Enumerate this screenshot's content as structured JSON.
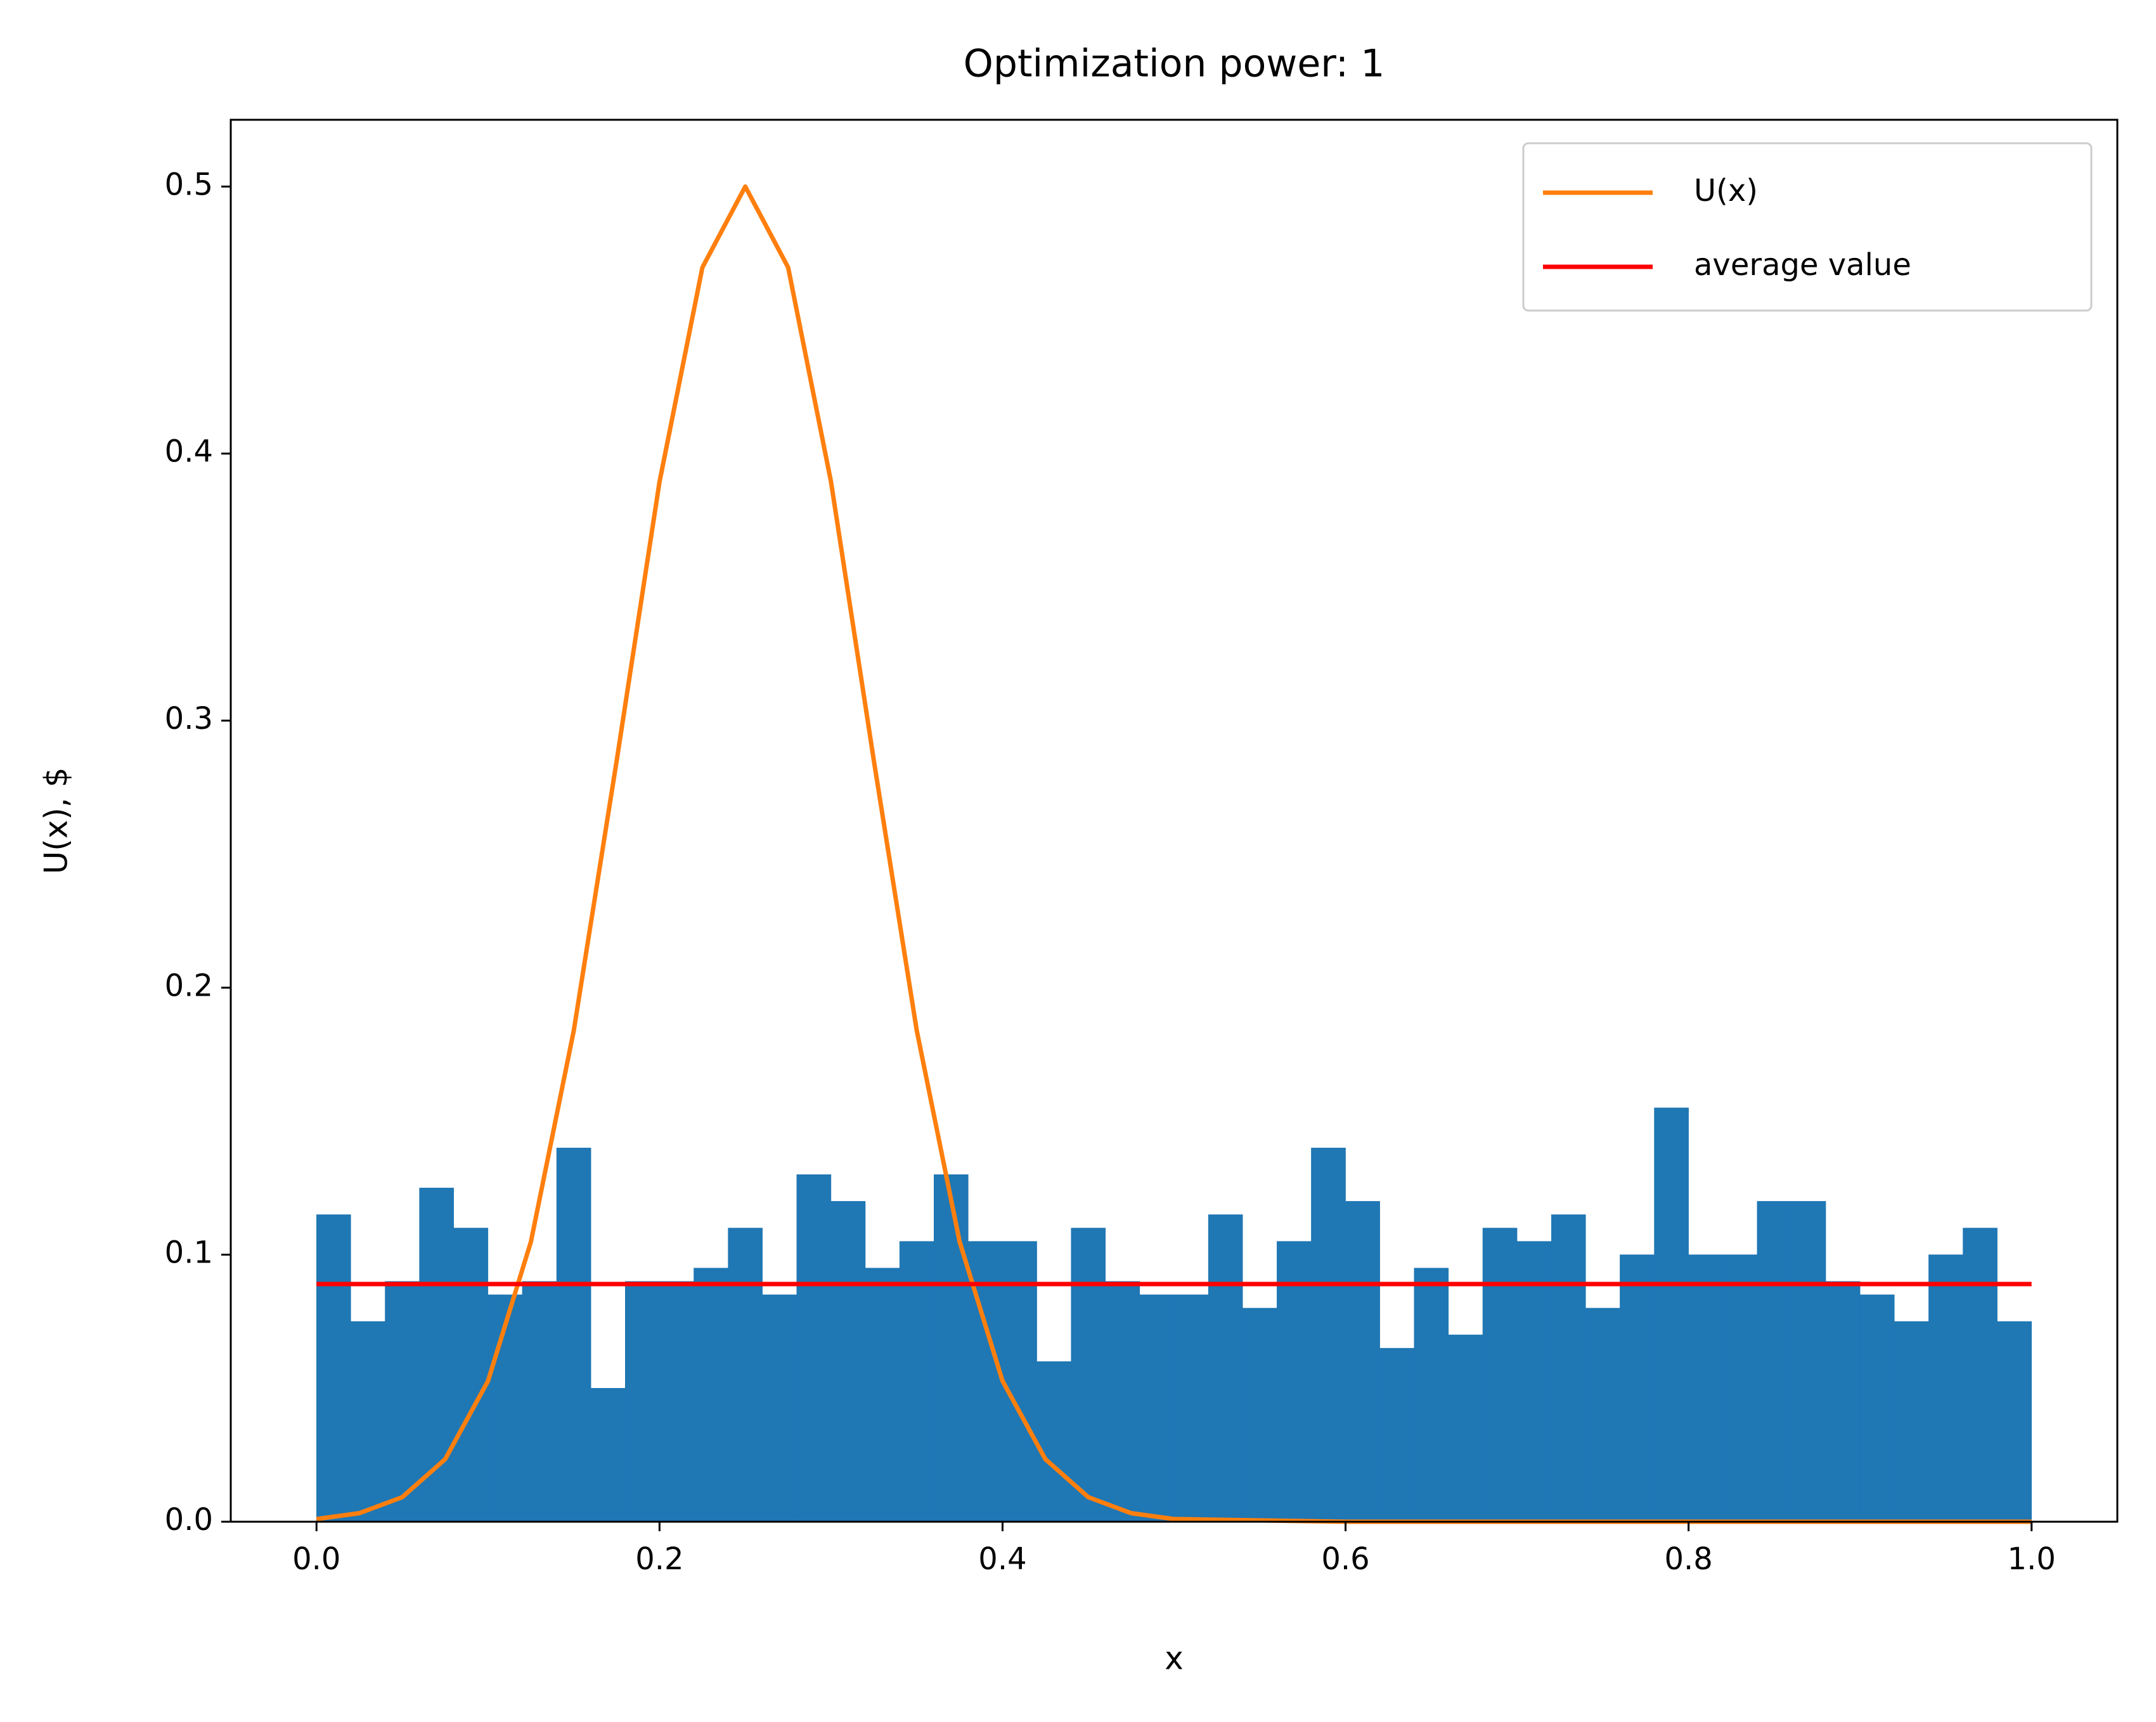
{
  "chart_data": {
    "type": "histogram",
    "title": "Optimization power: 1",
    "xlabel": "x",
    "ylabel": "U(x), $",
    "bins": [
      0,
      0.02,
      0.04,
      0.06,
      0.08,
      0.1,
      0.12,
      0.14,
      0.16,
      0.18,
      0.2,
      0.22,
      0.24,
      0.26,
      0.28,
      0.3,
      0.32,
      0.34,
      0.36,
      0.38,
      0.4,
      0.42,
      0.44,
      0.46,
      0.48,
      0.5,
      0.52,
      0.54,
      0.56,
      0.58,
      0.6,
      0.62,
      0.64,
      0.66,
      0.68,
      0.7,
      0.72,
      0.74,
      0.76,
      0.78,
      0.8,
      0.82,
      0.84,
      0.86,
      0.88,
      0.9,
      0.92,
      0.94,
      0.96,
      0.98,
      1.0
    ],
    "values": [
      0.115,
      0.075,
      0.09,
      0.125,
      0.11,
      0.085,
      0.09,
      0.14,
      0.05,
      0.09,
      0.09,
      0.095,
      0.11,
      0.085,
      0.13,
      0.12,
      0.095,
      0.105,
      0.13,
      0.105,
      0.105,
      0.06,
      0.11,
      0.09,
      0.085,
      0.085,
      0.115,
      0.08,
      0.105,
      0.14,
      0.12,
      0.065,
      0.095,
      0.07,
      0.11,
      0.105,
      0.115,
      0.08,
      0.1,
      0.155,
      0.1,
      0.1,
      0.12,
      0.12,
      0.09,
      0.085,
      0.075,
      0.1,
      0.11,
      0.075
    ],
    "color": "#1f77b4",
    "series": [
      {
        "name": "U(x)",
        "color": "#ff7f0e",
        "x": [
          0,
          0.025,
          0.05,
          0.075,
          0.1,
          0.125,
          0.15,
          0.175,
          0.2,
          0.225,
          0.25,
          0.275,
          0.3,
          0.325,
          0.35,
          0.375,
          0.4,
          0.425,
          0.45,
          0.475,
          0.5,
          0.6,
          0.8,
          1.0
        ],
        "values": [
          0.001,
          0.0032,
          0.0092,
          0.0234,
          0.0527,
          0.1048,
          0.1839,
          0.2849,
          0.3894,
          0.4697,
          0.5,
          0.4697,
          0.3894,
          0.2849,
          0.1839,
          0.1048,
          0.0527,
          0.0234,
          0.0092,
          0.0032,
          0.001,
          0,
          0,
          0
        ]
      },
      {
        "name": "average value",
        "color": "#ff0000",
        "x": [
          0,
          1.0
        ],
        "values": [
          0.089,
          0.089
        ]
      }
    ],
    "xlim": [
      -0.05,
      1.05
    ],
    "ylim": [
      0,
      0.525
    ],
    "xticks": [
      {
        "value": 0,
        "label": "0.0"
      },
      0.2,
      0.4,
      0.6,
      0.8,
      {
        "value": 1.0,
        "label": "1.0"
      }
    ],
    "yticks": [
      {
        "value": 0,
        "label": "0.0"
      },
      0.1,
      0.2,
      0.3,
      0.4,
      0.5
    ],
    "legend": "upper right"
  }
}
